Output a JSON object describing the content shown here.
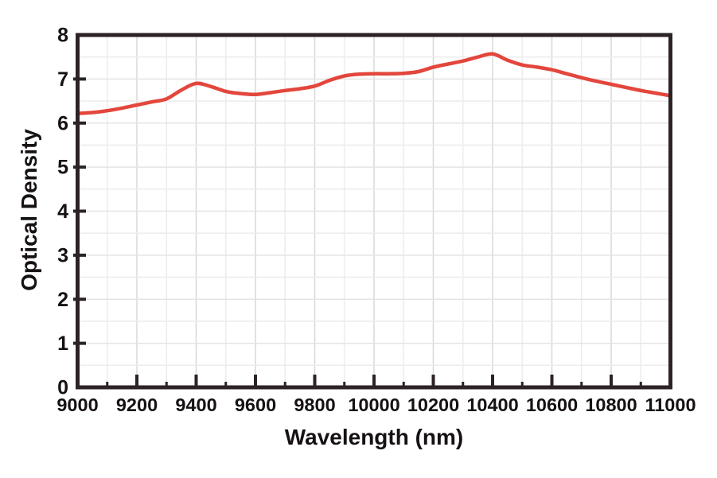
{
  "chart_data": {
    "type": "line",
    "title": "",
    "xlabel": "Wavelength (nm)",
    "ylabel": "Optical Density",
    "xlim": [
      9000,
      11000
    ],
    "ylim": [
      0,
      8
    ],
    "x_tick_labels": [
      "9000",
      "9200",
      "9400",
      "9600",
      "9800",
      "10000",
      "10200",
      "10400",
      "10600",
      "10800",
      "11000"
    ],
    "x_major_tick_values": [
      9000,
      9200,
      9400,
      9600,
      9800,
      10000,
      10200,
      10400,
      10600,
      10800,
      11000
    ],
    "x_minor_tick_step": 100,
    "y_tick_labels": [
      "0",
      "1",
      "2",
      "3",
      "4",
      "5",
      "6",
      "7",
      "8"
    ],
    "y_major_tick_values": [
      0,
      1,
      2,
      3,
      4,
      5,
      6,
      7,
      8
    ],
    "grid": {
      "visible": true,
      "vertical_step_nm": 100,
      "horizontal_step_od": 0.5
    },
    "legend": {
      "visible": false
    },
    "colors": {
      "line": "#e3463c",
      "frame": "#2b2326",
      "text": "#161112",
      "grid_major": "#dadada",
      "grid_minor": "#ededed",
      "background": "#ffffff"
    },
    "series": [
      {
        "name": "Optical Density",
        "x": [
          9000,
          9050,
          9100,
          9150,
          9200,
          9250,
          9300,
          9350,
          9400,
          9450,
          9500,
          9550,
          9600,
          9650,
          9700,
          9750,
          9800,
          9850,
          9900,
          9950,
          10000,
          10050,
          10100,
          10150,
          10200,
          10250,
          10300,
          10350,
          10400,
          10450,
          10500,
          10550,
          10600,
          10650,
          10700,
          10750,
          10800,
          10850,
          10900,
          10950,
          11000
        ],
        "y": [
          6.22,
          6.24,
          6.28,
          6.34,
          6.41,
          6.48,
          6.55,
          6.75,
          6.9,
          6.83,
          6.72,
          6.67,
          6.65,
          6.69,
          6.74,
          6.78,
          6.84,
          6.97,
          7.07,
          7.11,
          7.12,
          7.12,
          7.13,
          7.17,
          7.27,
          7.34,
          7.41,
          7.5,
          7.57,
          7.43,
          7.32,
          7.27,
          7.21,
          7.12,
          7.03,
          6.95,
          6.88,
          6.81,
          6.74,
          6.68,
          6.62
        ]
      }
    ]
  }
}
